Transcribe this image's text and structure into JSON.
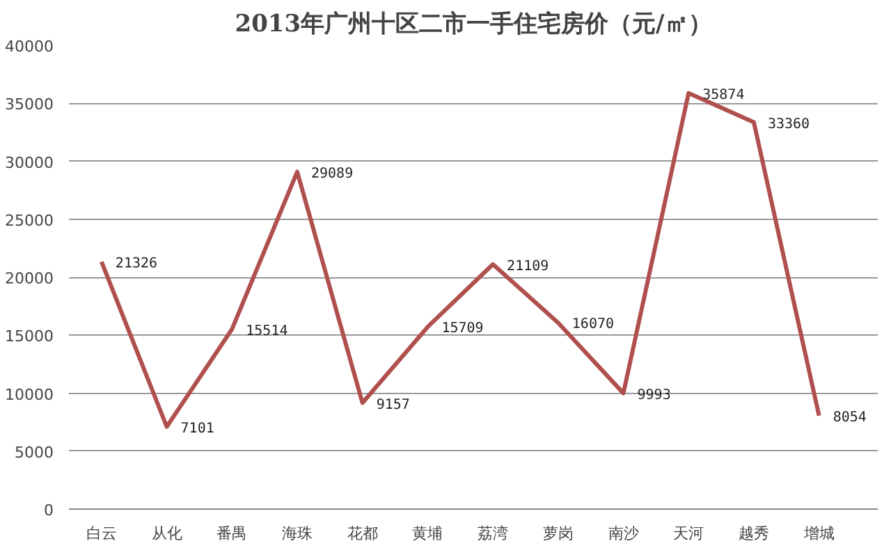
{
  "chart_data": {
    "type": "line",
    "title": "2013年广州十区二市一手住宅房价（元/㎡）",
    "categories": [
      "白云",
      "从化",
      "番禺",
      "海珠",
      "花都",
      "黄埔",
      "荔湾",
      "萝岗",
      "南沙",
      "天河",
      "越秀",
      "增城"
    ],
    "series": [
      {
        "color": "#b0504e",
        "values": [
          21326,
          7101,
          15514,
          29089,
          9157,
          15709,
          21109,
          16070,
          9993,
          35874,
          33360,
          8054
        ]
      }
    ],
    "ylim": [
      0,
      40000
    ],
    "yticks": [
      0,
      5000,
      10000,
      15000,
      20000,
      25000,
      30000,
      35000,
      40000
    ],
    "grid": "y",
    "marker": "none",
    "line_style": "solid",
    "data_labels": true
  }
}
